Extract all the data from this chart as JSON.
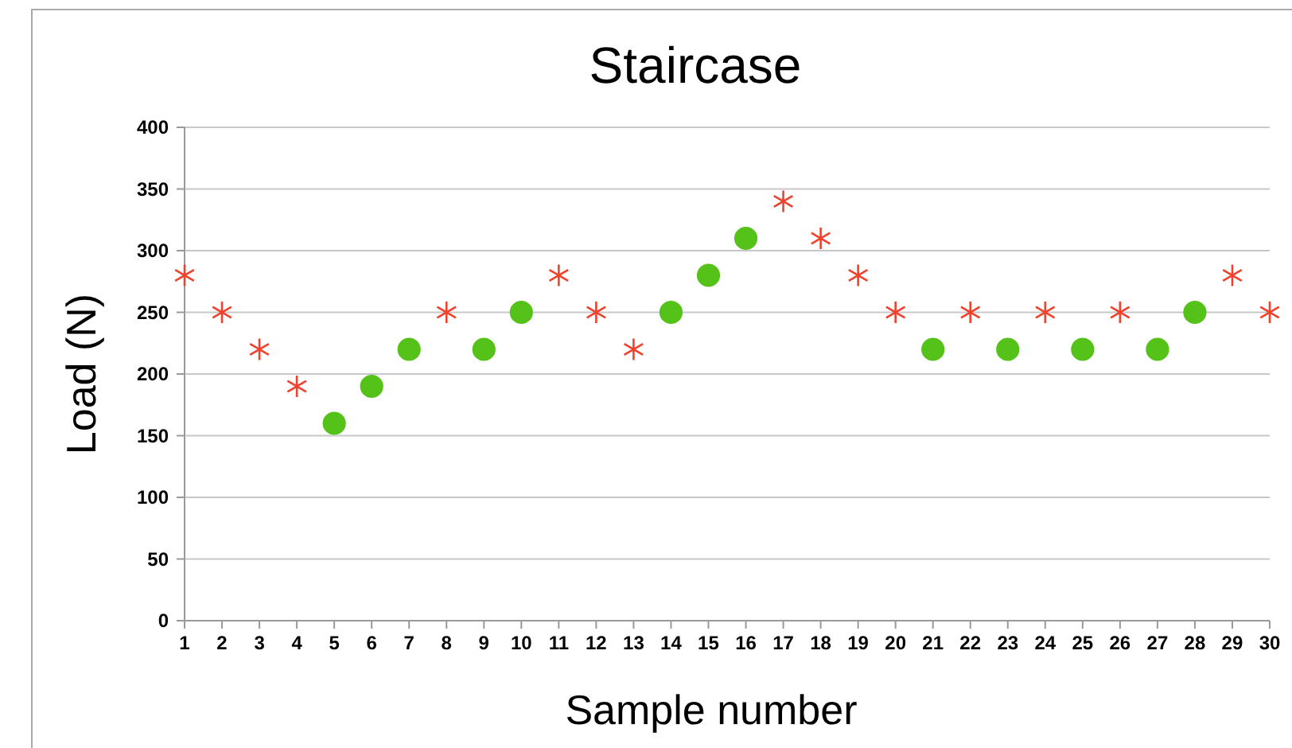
{
  "chart_data": {
    "type": "scatter",
    "title": "Staircase",
    "xlabel": "Sample number",
    "ylabel": "Load (N)",
    "x": [
      1,
      2,
      3,
      4,
      5,
      6,
      7,
      8,
      9,
      10,
      11,
      12,
      13,
      14,
      15,
      16,
      17,
      18,
      19,
      20,
      21,
      22,
      23,
      24,
      25,
      26,
      27,
      28,
      29,
      30
    ],
    "series": [
      {
        "color": "#f0412d",
        "marker": "cross",
        "values": [
          280,
          250,
          220,
          190,
          null,
          null,
          null,
          250,
          null,
          null,
          280,
          250,
          220,
          null,
          null,
          null,
          340,
          310,
          280,
          250,
          null,
          250,
          null,
          250,
          null,
          250,
          null,
          null,
          280,
          250
        ]
      },
      {
        "color": "#55c21a",
        "marker": "circle",
        "values": [
          null,
          null,
          null,
          null,
          160,
          190,
          220,
          null,
          220,
          250,
          null,
          null,
          null,
          250,
          280,
          310,
          null,
          null,
          null,
          null,
          220,
          null,
          220,
          null,
          220,
          null,
          220,
          250,
          null,
          null
        ]
      }
    ],
    "xlim": [
      1,
      30
    ],
    "xticks": [
      1,
      2,
      3,
      4,
      5,
      6,
      7,
      8,
      9,
      10,
      11,
      12,
      13,
      14,
      15,
      16,
      17,
      18,
      19,
      20,
      21,
      22,
      23,
      24,
      25,
      26,
      27,
      28,
      29,
      30
    ],
    "ylim": [
      0,
      400
    ],
    "yticks": [
      0,
      50,
      100,
      150,
      200,
      250,
      300,
      350,
      400
    ],
    "grid": "y"
  }
}
